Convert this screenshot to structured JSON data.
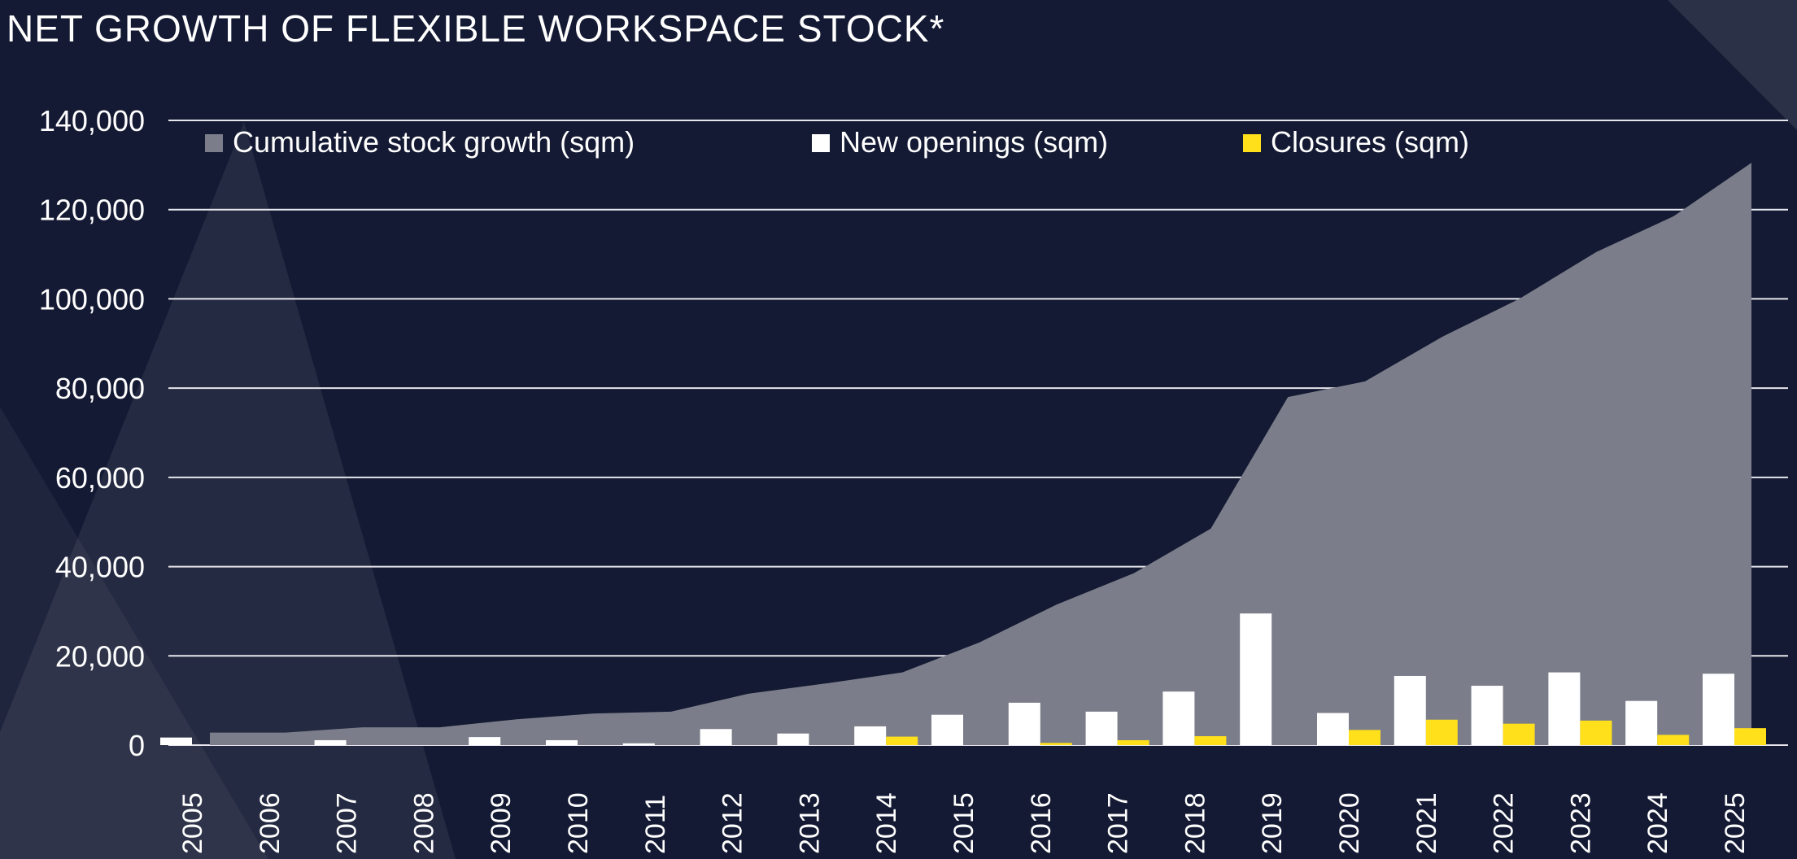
{
  "chart_data": {
    "type": "bar",
    "title": "NET GROWTH OF FLEXIBLE WORKSPACE STOCK*",
    "categories": [
      "2005",
      "2006",
      "2007",
      "2008",
      "2009",
      "2010",
      "2011",
      "2012",
      "2013",
      "2014",
      "2015",
      "2016",
      "2017",
      "2018",
      "2019",
      "2020",
      "2021",
      "2022",
      "2023",
      "2024",
      "2025"
    ],
    "ylim": [
      0,
      140000
    ],
    "yticks": [
      0,
      20000,
      40000,
      60000,
      80000,
      100000,
      120000,
      140000
    ],
    "ytick_labels": [
      "0",
      "20,000",
      "40,000",
      "60,000",
      "80,000",
      "100,000",
      "120,000",
      "140,000"
    ],
    "grid": true,
    "legend_position": "top",
    "series": [
      {
        "name": "Cumulative stock growth (sqm)",
        "type": "area",
        "color": "#7b7e8a",
        "values": [
          2800,
          2800,
          4000,
          4000,
          5800,
          7100,
          7500,
          11500,
          13800,
          16300,
          23000,
          31500,
          38500,
          48500,
          78000,
          81500,
          91500,
          100000,
          110500,
          118500,
          130500
        ]
      },
      {
        "name": "New openings (sqm)",
        "type": "bar",
        "color": "#ffffff",
        "values": [
          1700,
          0,
          1100,
          0,
          1800,
          1100,
          400,
          3600,
          2600,
          4200,
          6800,
          9500,
          7500,
          12000,
          29500,
          7200,
          15500,
          13300,
          16300,
          9900,
          16000
        ]
      },
      {
        "name": "Closures (sqm)",
        "type": "bar",
        "color": "#ffe01a",
        "values": [
          0,
          0,
          0,
          0,
          0,
          0,
          0,
          0,
          0,
          1900,
          0,
          500,
          1100,
          2000,
          0,
          3400,
          5700,
          4800,
          5500,
          2300,
          3800
        ]
      }
    ]
  }
}
